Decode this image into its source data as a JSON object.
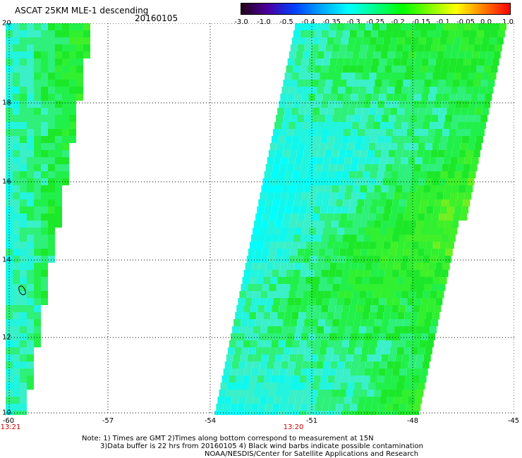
{
  "header": {
    "title": "ASCAT 25KM MLE-1 descending",
    "date": "20160105"
  },
  "colorbar": {
    "ticks": [
      "-3.0",
      "-1.0",
      "-0.5",
      "-0.4",
      "-0.35",
      "-0.3",
      "-0.25",
      "-0.2",
      "-0.15",
      "-0.1",
      "-0.05",
      "0.0",
      "1.0"
    ],
    "colors": [
      "#250018",
      "#4a00a0",
      "#0040ff",
      "#00a8ff",
      "#00ffff",
      "#00ff88",
      "#00ff00",
      "#7fff00",
      "#ffff00",
      "#ff8000",
      "#ff0000"
    ]
  },
  "map": {
    "lat_labels": [
      "20",
      "18",
      "16",
      "14",
      "12",
      "10"
    ],
    "lon_labels": [
      "-60",
      "-57",
      "-54",
      "-51",
      "-48",
      "-45"
    ],
    "time_labels": [
      "13:21",
      "13:20"
    ],
    "lat_range": [
      10,
      20
    ],
    "lon_range": [
      -60,
      -45
    ]
  },
  "notes": {
    "line1": "Note: 1) Times are GMT 2)Times along bottom correspond to measurement at 15N",
    "line2": "3)Data buffer is 22 hrs from 20160105 4) Black wind barbs indicate possible contamination",
    "line3": "NOAA/NESDIS/Center for Satellite Applications and Research"
  }
}
